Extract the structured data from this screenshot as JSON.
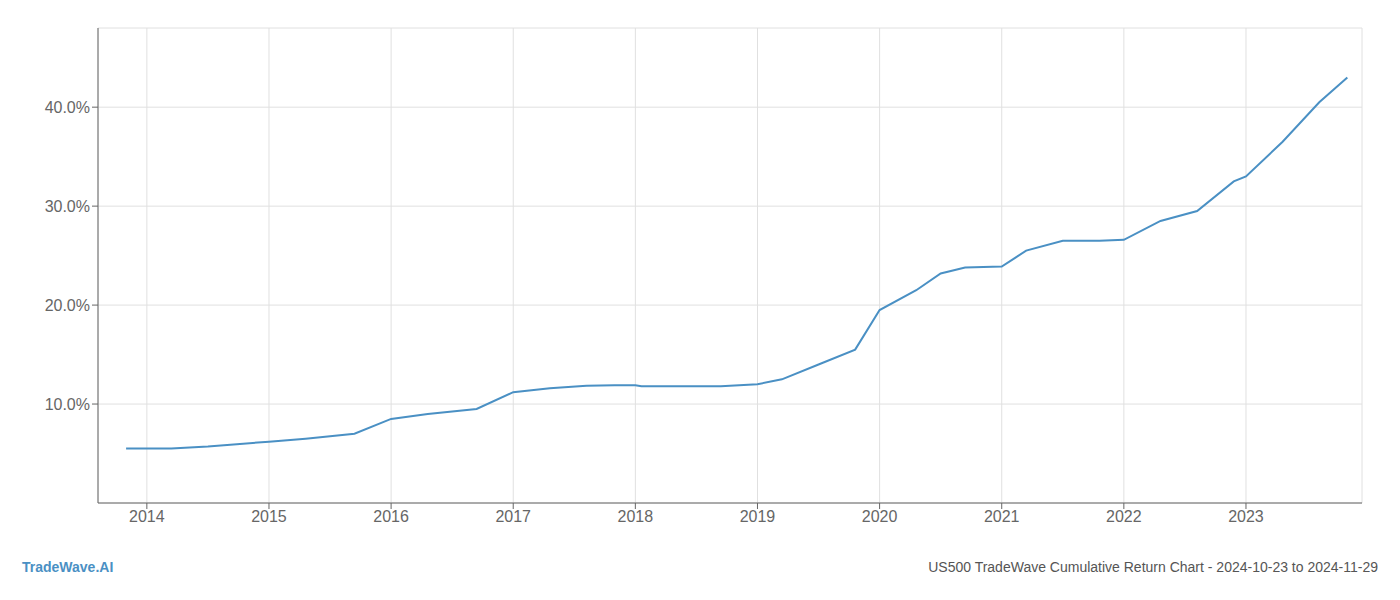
{
  "chart_data": {
    "type": "line",
    "x": [
      2013.83,
      2014.0,
      2014.2,
      2014.5,
      2015.0,
      2015.3,
      2015.7,
      2016.0,
      2016.3,
      2016.7,
      2017.0,
      2017.3,
      2017.6,
      2017.83,
      2018.0,
      2018.05,
      2018.3,
      2018.7,
      2019.0,
      2019.2,
      2019.5,
      2019.8,
      2020.0,
      2020.3,
      2020.5,
      2020.7,
      2021.0,
      2021.2,
      2021.5,
      2021.8,
      2022.0,
      2022.3,
      2022.6,
      2022.9,
      2023.0,
      2023.3,
      2023.6,
      2023.83
    ],
    "values": [
      5.5,
      5.5,
      5.5,
      5.7,
      6.2,
      6.5,
      7.0,
      8.5,
      9.0,
      9.5,
      11.2,
      11.6,
      11.85,
      11.9,
      11.9,
      11.8,
      11.8,
      11.8,
      12.0,
      12.5,
      14.0,
      15.5,
      19.5,
      21.5,
      23.2,
      23.8,
      23.9,
      25.5,
      26.5,
      26.5,
      26.6,
      28.5,
      29.5,
      32.5,
      33.0,
      36.5,
      40.5,
      43.0
    ],
    "color": "#4a90c4",
    "xlim": [
      2013.6,
      2023.95
    ],
    "ylim": [
      0,
      48
    ],
    "xticks": [
      2014,
      2015,
      2016,
      2017,
      2018,
      2019,
      2020,
      2021,
      2022,
      2023
    ],
    "yticks": [
      {
        "value": 10,
        "label": "10.0%"
      },
      {
        "value": 20,
        "label": "20.0%"
      },
      {
        "value": 30,
        "label": "30.0%"
      },
      {
        "value": 40,
        "label": "40.0%"
      }
    ],
    "grid": true,
    "annotations": [
      {
        "text": "TradeWave.AI",
        "color": "#4a90c4"
      },
      {
        "text": "US500 TradeWave Cumulative Return Chart - 2024-10-23 to 2024-11-29",
        "color": "#555555"
      }
    ]
  }
}
